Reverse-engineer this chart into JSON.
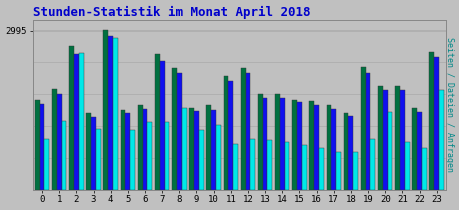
{
  "title": "Stunden-Statistik im Monat April 2018",
  "title_color": "#0000cc",
  "ylabel_right": "Seiten / Dateien / Anfragen",
  "ylabel_right_color": "#008888",
  "background_color": "#c0c0c0",
  "plot_bg_color": "#c0c0c0",
  "bar_width": 0.28,
  "colors_order": [
    "#007040",
    "#1010ee",
    "#00e8e8"
  ],
  "hours": [
    0,
    1,
    2,
    3,
    4,
    5,
    6,
    7,
    8,
    9,
    10,
    11,
    12,
    13,
    14,
    15,
    16,
    17,
    18,
    19,
    20,
    21,
    22,
    23
  ],
  "seiten": [
    1700,
    1900,
    2700,
    1450,
    3000,
    1500,
    1600,
    2550,
    2300,
    1550,
    1600,
    2150,
    2300,
    1800,
    1800,
    1700,
    1680,
    1600,
    1450,
    2320,
    1950,
    1960,
    1550,
    2600
  ],
  "dateien": [
    1620,
    1800,
    2550,
    1380,
    2900,
    1440,
    1530,
    2420,
    2200,
    1480,
    1500,
    2050,
    2200,
    1720,
    1720,
    1650,
    1600,
    1530,
    1390,
    2200,
    1870,
    1870,
    1470,
    2500
  ],
  "anfragen": [
    950,
    1300,
    2580,
    1150,
    2850,
    1120,
    1270,
    1280,
    1550,
    1130,
    1230,
    860,
    950,
    930,
    900,
    840,
    790,
    720,
    720,
    960,
    1470,
    900,
    790,
    1880
  ],
  "ymax": 3200,
  "ytick_val": 2995,
  "yline_val": 2995
}
